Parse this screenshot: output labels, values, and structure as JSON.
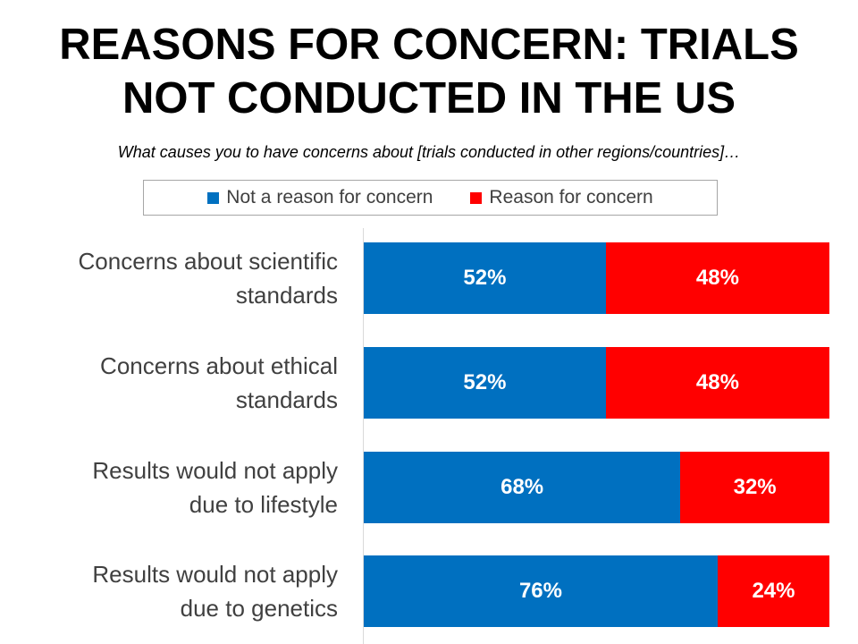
{
  "title_lines": [
    "REASONS FOR CONCERN: TRIALS",
    "NOT CONDUCTED IN THE US"
  ],
  "subtitle": "What causes you to have concerns about [trials conducted in other regions/countries]…",
  "colors": {
    "not_reason": "#0070c0",
    "reason": "#ff0000"
  },
  "legend": [
    "Not a reason for concern",
    "Reason for concern"
  ],
  "chart_data": {
    "type": "bar",
    "orientation": "horizontal",
    "stacked": "100%",
    "title": "REASONS FOR CONCERN: TRIALS NOT CONDUCTED IN THE US",
    "subtitle": "What causes you to have concerns about [trials conducted in other regions/countries]…",
    "categories": [
      [
        "Concerns about scientific",
        "standards"
      ],
      [
        "Concerns about ethical",
        "standards"
      ],
      [
        "Results would not apply",
        "due to lifestyle"
      ],
      [
        "Results would not apply",
        "due to genetics"
      ]
    ],
    "series": [
      {
        "name": "Not a reason for concern",
        "values": [
          52,
          52,
          68,
          76
        ],
        "labels": [
          "52%",
          "52%",
          "68%",
          "76%"
        ]
      },
      {
        "name": "Reason for concern",
        "values": [
          48,
          48,
          32,
          24
        ],
        "labels": [
          "48%",
          "48%",
          "32%",
          "24%"
        ]
      }
    ],
    "xlim": [
      0,
      100
    ],
    "legend_position": "top"
  }
}
